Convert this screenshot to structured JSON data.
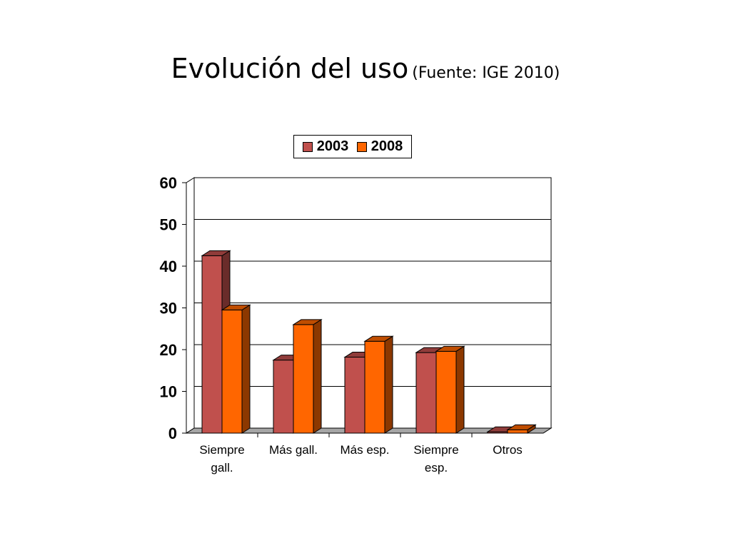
{
  "slide": {
    "title": "Evolución del uso",
    "subtitle": "(Fuente: IGE 2010)"
  },
  "colors": {
    "series_2003": "#c0504d",
    "series_2008": "#ff6600",
    "floor": "#a6a6a6",
    "gridline": "#000000"
  },
  "chart_data": {
    "type": "bar",
    "categories": [
      [
        "Siempre",
        "gall."
      ],
      [
        "Más gall."
      ],
      [
        "Más esp."
      ],
      [
        "Siempre",
        "esp."
      ],
      [
        "Otros"
      ]
    ],
    "series": [
      {
        "name": "2003",
        "values": [
          42.5,
          17.5,
          18.2,
          19.3,
          0.3
        ]
      },
      {
        "name": "2008",
        "values": [
          29.5,
          26.0,
          22.0,
          19.6,
          0.8
        ]
      }
    ],
    "y_ticks": [
      "0",
      "10",
      "20",
      "30",
      "40",
      "50",
      "60"
    ],
    "ylim": [
      0,
      60
    ],
    "grid": true,
    "legend_position": "top",
    "style": "3d-clustered-column"
  }
}
